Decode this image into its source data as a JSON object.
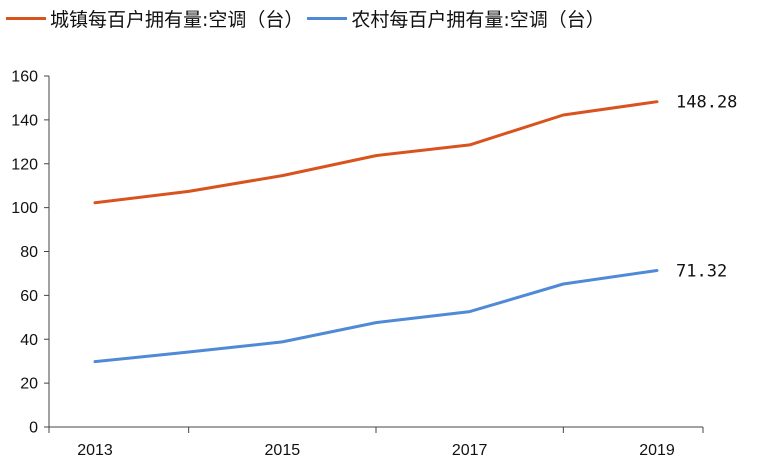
{
  "chart_data": {
    "type": "line",
    "title": "",
    "xlabel": "",
    "ylabel": "",
    "x": [
      2013,
      2014,
      2015,
      2016,
      2017,
      2018,
      2019
    ],
    "x_tick_labels": [
      "2013",
      "2015",
      "2017",
      "2019"
    ],
    "ylim": [
      0,
      160
    ],
    "y_ticks": [
      0,
      20,
      40,
      60,
      80,
      100,
      120,
      140,
      160
    ],
    "grid": false,
    "legend": "top",
    "series": [
      {
        "name": "城镇每百户拥有量:空调（台）",
        "color": "#d9531e",
        "values": [
          102.2,
          107.4,
          114.6,
          123.7,
          128.6,
          142.2,
          148.28
        ],
        "end_label": "148.28"
      },
      {
        "name": "农村每百户拥有量:空调（台）",
        "color": "#4f8ad6",
        "values": [
          29.8,
          34.2,
          38.8,
          47.6,
          52.6,
          65.2,
          71.32
        ],
        "end_label": "71.32"
      }
    ]
  }
}
